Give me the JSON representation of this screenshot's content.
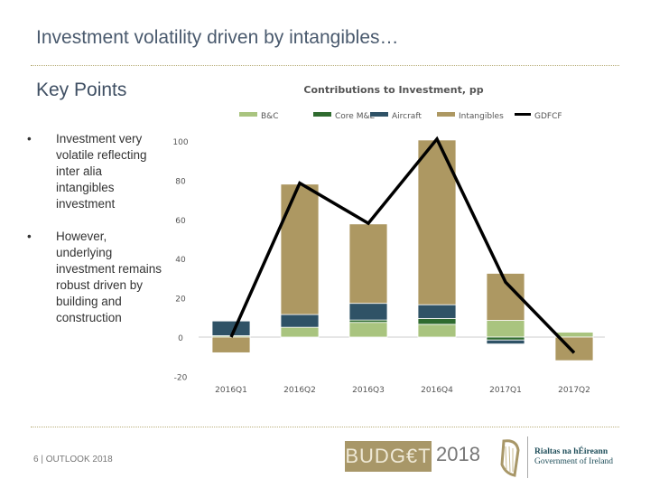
{
  "slide": {
    "title": "Investment volatility driven by intangibles…",
    "subtitle": "Key Points",
    "bullets": [
      "Investment very volatile reflecting inter alia intangibles investment",
      "However, underlying investment remains robust driven by building and construction"
    ],
    "footer": "6 | OUTLOOK 2018",
    "logo_budget": "BUDG€T",
    "logo_year": "2018",
    "gov_irish": "Rialtas na hÉireann",
    "gov_english": "Government of Ireland"
  },
  "chart_data": {
    "type": "bar",
    "stacked": true,
    "title": "Contributions to Investment, pp",
    "xlabel": "",
    "ylabel": "",
    "categories": [
      "2016Q1",
      "2016Q2",
      "2016Q3",
      "2016Q4",
      "2017Q1",
      "2017Q2"
    ],
    "ylim": [
      -20,
      100
    ],
    "yticks": [
      -20,
      0,
      20,
      40,
      60,
      80,
      100
    ],
    "legend": "top",
    "grid": false,
    "series": [
      {
        "name": "B&C",
        "color": "#a9c47f",
        "values": [
          0.7,
          5,
          7.5,
          6.5,
          8.5,
          2.5
        ]
      },
      {
        "name": "Core M&E",
        "color": "#2f6b2f",
        "values": [
          0,
          0,
          1.2,
          3,
          -1.5,
          0.3
        ]
      },
      {
        "name": "Aircraft",
        "color": "#2f5266",
        "values": [
          7.5,
          6.5,
          8.5,
          7,
          -2,
          0
        ]
      },
      {
        "name": "Intangibles",
        "color": "#ad9862",
        "values": [
          -8,
          66.5,
          40.5,
          84,
          24,
          -12
        ]
      }
    ],
    "line": {
      "name": "GDFCF",
      "color": "#000000",
      "values": [
        0,
        78.5,
        58,
        101,
        28,
        -8
      ]
    }
  }
}
